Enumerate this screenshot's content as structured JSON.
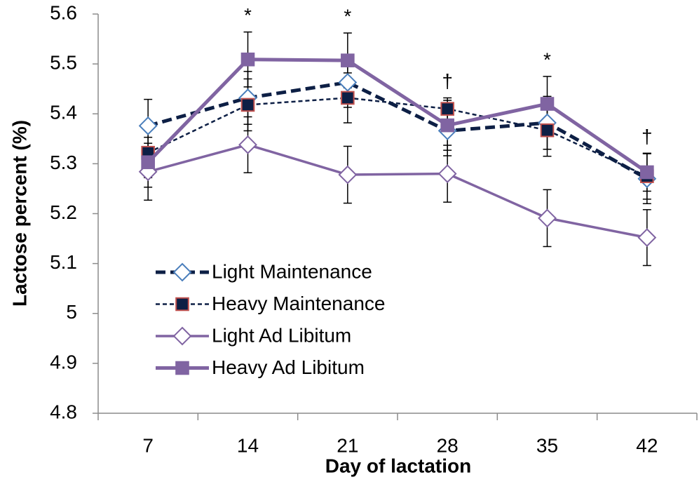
{
  "chart_data": {
    "type": "line",
    "xlabel": "Day of lactation",
    "ylabel": "Lactose percent (%)",
    "categories": [
      "7",
      "14",
      "21",
      "28",
      "35",
      "42"
    ],
    "ylim": [
      4.8,
      5.6
    ],
    "yticks": [
      4.8,
      4.9,
      5,
      5.1,
      5.2,
      5.3,
      5.4,
      5.5,
      5.6
    ],
    "grid": false,
    "legend": "left",
    "annotations": [
      null,
      "*",
      "*",
      "†",
      "*",
      "†"
    ],
    "series": [
      {
        "name": "Light Maintenance",
        "color": "#0d1f45",
        "line_width": 5,
        "dash": "14 7",
        "marker": "diamond",
        "marker_fill": "#ffffff",
        "marker_stroke": "#4a7ebb",
        "values": [
          5.376,
          5.432,
          5.463,
          5.366,
          5.382,
          5.27
        ],
        "errors": [
          0.053,
          0.053,
          0.05,
          0.05,
          0.053,
          0.05
        ]
      },
      {
        "name": "Heavy Maintenance",
        "color": "#0d1f45",
        "line_width": 2.5,
        "dash": "6 4",
        "marker": "square",
        "marker_fill": "#0d1f45",
        "marker_stroke": "#c0504d",
        "values": [
          5.322,
          5.418,
          5.432,
          5.41,
          5.367,
          5.275
        ],
        "errors": [
          0.05,
          0.052,
          0.05,
          0.022,
          0.052,
          0.046
        ]
      },
      {
        "name": "Light Ad Libitum",
        "color": "#8064a2",
        "line_width": 3.5,
        "dash": "none",
        "marker": "diamond",
        "marker_fill": "#ffffff",
        "marker_stroke": "#8064a2",
        "values": [
          5.284,
          5.338,
          5.278,
          5.28,
          5.191,
          5.152
        ],
        "errors": [
          0.057,
          0.056,
          0.057,
          0.057,
          0.057,
          0.056
        ]
      },
      {
        "name": "Heavy Ad Libitum",
        "color": "#8064a2",
        "line_width": 5,
        "dash": "none",
        "marker": "square",
        "marker_fill": "#8064a2",
        "marker_stroke": "#8064a2",
        "values": [
          5.303,
          5.509,
          5.507,
          5.377,
          5.42,
          5.283
        ],
        "errors": [
          0.05,
          0.055,
          0.055,
          0.05,
          0.055,
          0.038
        ]
      }
    ]
  }
}
